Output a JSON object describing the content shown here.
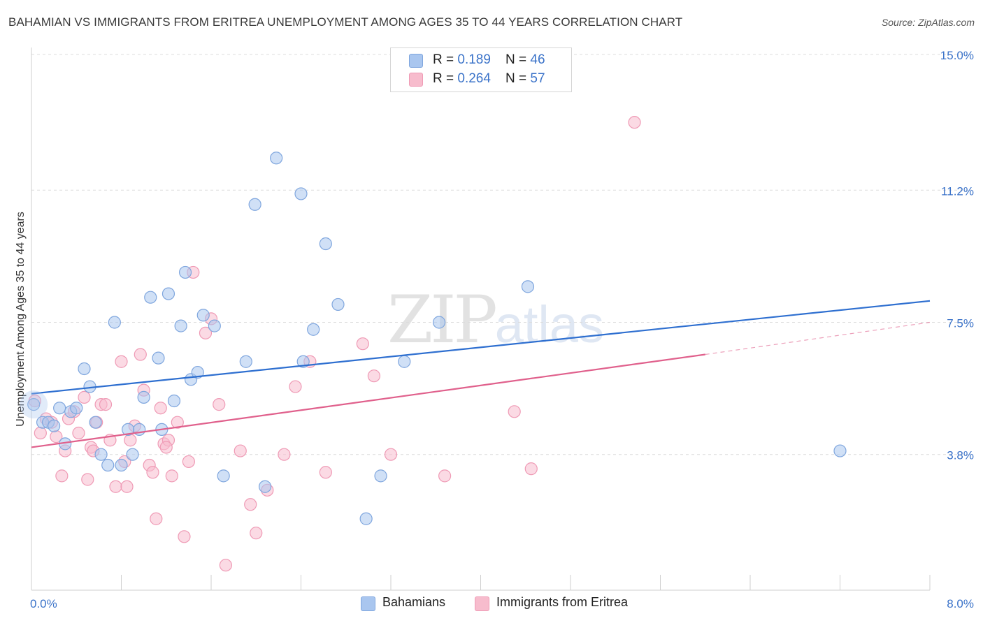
{
  "title": "BAHAMIAN VS IMMIGRANTS FROM ERITREA UNEMPLOYMENT AMONG AGES 35 TO 44 YEARS CORRELATION CHART",
  "source": "Source: ZipAtlas.com",
  "watermark": {
    "zip": "ZIP",
    "atlas": "atlas"
  },
  "legend_top": {
    "rows": [
      {
        "r_label": "R = ",
        "r_value": "0.189",
        "n_label": "N = ",
        "n_value": "46"
      },
      {
        "r_label": "R = ",
        "r_value": "0.264",
        "n_label": "N = ",
        "n_value": "57"
      }
    ]
  },
  "legend_bottom": {
    "series1": "Bahamians",
    "series2": "Immigrants from Eritrea"
  },
  "colors": {
    "blue_fill": "#a9c6ef",
    "blue_stroke": "#7fa6de",
    "blue_line": "#2e6fd0",
    "pink_fill": "#f7bccd",
    "pink_stroke": "#ef9ab5",
    "pink_line": "#e0608c",
    "axis_label": "#3b73c9",
    "grid": "#dcdcdc"
  },
  "chart_data": {
    "type": "scatter",
    "title": "BAHAMIAN VS IMMIGRANTS FROM ERITREA UNEMPLOYMENT AMONG AGES 35 TO 44 YEARS CORRELATION CHART",
    "xlabel": "",
    "ylabel": "Unemployment Among Ages 35 to 44 years",
    "xlim": [
      0.0,
      8.0
    ],
    "ylim": [
      0.0,
      15.0
    ],
    "x_tick_labels": [
      "0.0%",
      "8.0%"
    ],
    "y_ticks": [
      3.8,
      7.5,
      11.2,
      15.0
    ],
    "y_tick_labels": [
      "3.8%",
      "7.5%",
      "11.2%",
      "15.0%"
    ],
    "grid": true,
    "legend_position": "top-center",
    "series": [
      {
        "name": "Bahamians",
        "r": 0.189,
        "n": 46,
        "trend": {
          "x": [
            0.0,
            8.0
          ],
          "y": [
            5.5,
            8.1
          ]
        },
        "points": [
          [
            0.02,
            5.2
          ],
          [
            0.1,
            4.7
          ],
          [
            0.15,
            4.7
          ],
          [
            0.2,
            4.6
          ],
          [
            0.25,
            5.1
          ],
          [
            0.3,
            4.1
          ],
          [
            0.35,
            5.0
          ],
          [
            0.4,
            5.1
          ],
          [
            0.47,
            6.2
          ],
          [
            0.52,
            5.7
          ],
          [
            0.57,
            4.7
          ],
          [
            0.62,
            3.8
          ],
          [
            0.68,
            3.5
          ],
          [
            0.74,
            7.5
          ],
          [
            0.8,
            3.5
          ],
          [
            0.86,
            4.5
          ],
          [
            0.9,
            3.8
          ],
          [
            0.96,
            4.5
          ],
          [
            1.0,
            5.4
          ],
          [
            1.06,
            8.2
          ],
          [
            1.13,
            6.5
          ],
          [
            1.16,
            4.5
          ],
          [
            1.22,
            8.3
          ],
          [
            1.27,
            5.3
          ],
          [
            1.33,
            7.4
          ],
          [
            1.37,
            8.9
          ],
          [
            1.42,
            5.9
          ],
          [
            1.48,
            6.1
          ],
          [
            1.53,
            7.7
          ],
          [
            1.63,
            7.4
          ],
          [
            1.71,
            3.2
          ],
          [
            1.91,
            6.4
          ],
          [
            1.99,
            10.8
          ],
          [
            2.08,
            2.9
          ],
          [
            2.18,
            12.1
          ],
          [
            2.4,
            11.1
          ],
          [
            2.42,
            6.4
          ],
          [
            2.51,
            7.3
          ],
          [
            2.62,
            9.7
          ],
          [
            2.73,
            8.0
          ],
          [
            2.98,
            2.0
          ],
          [
            3.11,
            3.2
          ],
          [
            3.32,
            6.4
          ],
          [
            3.63,
            7.5
          ],
          [
            4.42,
            8.5
          ],
          [
            7.2,
            3.9
          ]
        ]
      },
      {
        "name": "Immigrants from Eritrea",
        "r": 0.264,
        "n": 57,
        "trend": {
          "x": [
            0.0,
            6.0
          ],
          "y": [
            4.0,
            6.6
          ]
        },
        "trend_dashed": {
          "x": [
            6.0,
            8.0
          ],
          "y": [
            6.6,
            7.5
          ]
        },
        "points": [
          [
            0.03,
            5.3
          ],
          [
            0.08,
            4.4
          ],
          [
            0.13,
            4.8
          ],
          [
            0.18,
            4.7
          ],
          [
            0.22,
            4.3
          ],
          [
            0.27,
            3.2
          ],
          [
            0.3,
            3.9
          ],
          [
            0.33,
            4.8
          ],
          [
            0.38,
            5.0
          ],
          [
            0.42,
            4.4
          ],
          [
            0.47,
            5.4
          ],
          [
            0.5,
            3.1
          ],
          [
            0.53,
            4.0
          ],
          [
            0.58,
            4.7
          ],
          [
            0.62,
            5.2
          ],
          [
            0.66,
            5.2
          ],
          [
            0.7,
            4.2
          ],
          [
            0.75,
            2.9
          ],
          [
            0.8,
            6.4
          ],
          [
            0.83,
            3.6
          ],
          [
            0.88,
            4.2
          ],
          [
            0.92,
            4.6
          ],
          [
            0.97,
            6.6
          ],
          [
            1.0,
            5.6
          ],
          [
            1.05,
            3.5
          ],
          [
            1.08,
            3.3
          ],
          [
            1.11,
            2.0
          ],
          [
            1.15,
            5.1
          ],
          [
            1.18,
            4.1
          ],
          [
            1.22,
            4.2
          ],
          [
            1.25,
            3.2
          ],
          [
            1.3,
            4.7
          ],
          [
            1.36,
            1.5
          ],
          [
            1.4,
            3.6
          ],
          [
            1.44,
            8.9
          ],
          [
            1.55,
            7.2
          ],
          [
            1.6,
            7.6
          ],
          [
            1.67,
            5.2
          ],
          [
            1.73,
            0.7
          ],
          [
            1.86,
            3.9
          ],
          [
            1.95,
            2.4
          ],
          [
            2.0,
            1.6
          ],
          [
            2.1,
            2.8
          ],
          [
            2.25,
            3.8
          ],
          [
            2.35,
            5.7
          ],
          [
            2.48,
            6.4
          ],
          [
            2.62,
            3.3
          ],
          [
            2.95,
            6.9
          ],
          [
            3.05,
            6.0
          ],
          [
            3.2,
            3.8
          ],
          [
            3.68,
            3.2
          ],
          [
            4.3,
            5.0
          ],
          [
            4.45,
            3.4
          ],
          [
            5.37,
            13.1
          ],
          [
            0.55,
            3.9
          ],
          [
            0.85,
            2.9
          ],
          [
            1.2,
            4.0
          ]
        ]
      }
    ]
  }
}
